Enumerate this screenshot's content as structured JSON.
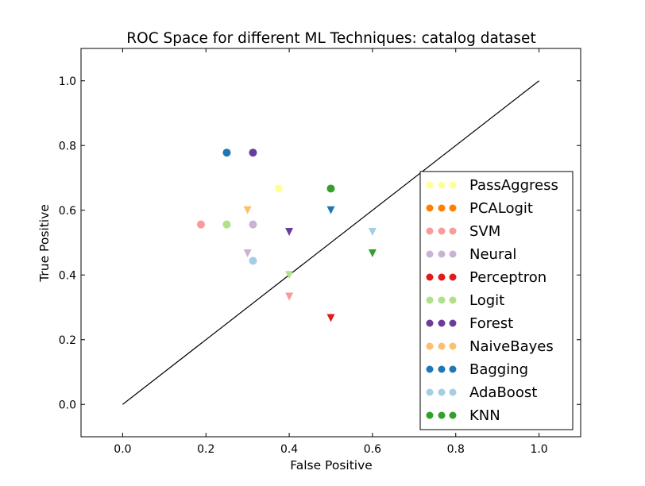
{
  "chart_data": {
    "type": "scatter",
    "title": "ROC Space for different ML Techniques: catalog dataset",
    "xlabel": "False Positive",
    "ylabel": "True Positive",
    "xlim": [
      -0.1,
      1.1
    ],
    "ylim": [
      -0.1,
      1.1
    ],
    "xticks": [
      0.0,
      0.2,
      0.4,
      0.6,
      0.8,
      1.0
    ],
    "yticks": [
      0.0,
      0.2,
      0.4,
      0.6,
      0.8,
      1.0
    ],
    "xtick_labels": [
      "0.0",
      "0.2",
      "0.4",
      "0.6",
      "0.8",
      "1.0"
    ],
    "ytick_labels": [
      "0.0",
      "0.2",
      "0.4",
      "0.6",
      "0.8",
      "1.0"
    ],
    "grid": false,
    "legend_position": "right",
    "diagonal": {
      "from": [
        0,
        0
      ],
      "to": [
        1,
        1
      ],
      "color": "#000000"
    },
    "series": [
      {
        "name": "PassAggress",
        "color": "#ffff99",
        "points": [
          {
            "x": 0.375,
            "y": 0.667,
            "marker": "circle"
          }
        ]
      },
      {
        "name": "PCALogit",
        "color": "#ff7f00",
        "points": []
      },
      {
        "name": "SVM",
        "color": "#fb9a99",
        "points": [
          {
            "x": 0.188,
            "y": 0.556,
            "marker": "circle"
          },
          {
            "x": 0.4,
            "y": 0.333,
            "marker": "triangle-down"
          }
        ]
      },
      {
        "name": "Neural",
        "color": "#cab2d6",
        "points": [
          {
            "x": 0.313,
            "y": 0.556,
            "marker": "circle"
          },
          {
            "x": 0.3,
            "y": 0.467,
            "marker": "triangle-down"
          }
        ]
      },
      {
        "name": "Perceptron",
        "color": "#e31a1c",
        "points": [
          {
            "x": 0.5,
            "y": 0.267,
            "marker": "triangle-down"
          }
        ]
      },
      {
        "name": "Logit",
        "color": "#b2df8a",
        "points": [
          {
            "x": 0.25,
            "y": 0.556,
            "marker": "circle"
          },
          {
            "x": 0.4,
            "y": 0.4,
            "marker": "triangle-down"
          }
        ]
      },
      {
        "name": "Forest",
        "color": "#6a3d9a",
        "points": [
          {
            "x": 0.313,
            "y": 0.778,
            "marker": "circle"
          },
          {
            "x": 0.4,
            "y": 0.533,
            "marker": "triangle-down"
          }
        ]
      },
      {
        "name": "NaiveBayes",
        "color": "#fdbf6f",
        "points": [
          {
            "x": 0.3,
            "y": 0.6,
            "marker": "triangle-down"
          }
        ]
      },
      {
        "name": "Bagging",
        "color": "#1f78b4",
        "points": [
          {
            "x": 0.25,
            "y": 0.778,
            "marker": "circle"
          },
          {
            "x": 0.5,
            "y": 0.6,
            "marker": "triangle-down"
          }
        ]
      },
      {
        "name": "AdaBoost",
        "color": "#a6cee3",
        "points": [
          {
            "x": 0.313,
            "y": 0.444,
            "marker": "circle"
          },
          {
            "x": 0.6,
            "y": 0.533,
            "marker": "triangle-down"
          }
        ]
      },
      {
        "name": "KNN",
        "color": "#33a02c",
        "points": [
          {
            "x": 0.5,
            "y": 0.667,
            "marker": "circle"
          },
          {
            "x": 0.6,
            "y": 0.467,
            "marker": "triangle-down"
          }
        ]
      }
    ]
  }
}
